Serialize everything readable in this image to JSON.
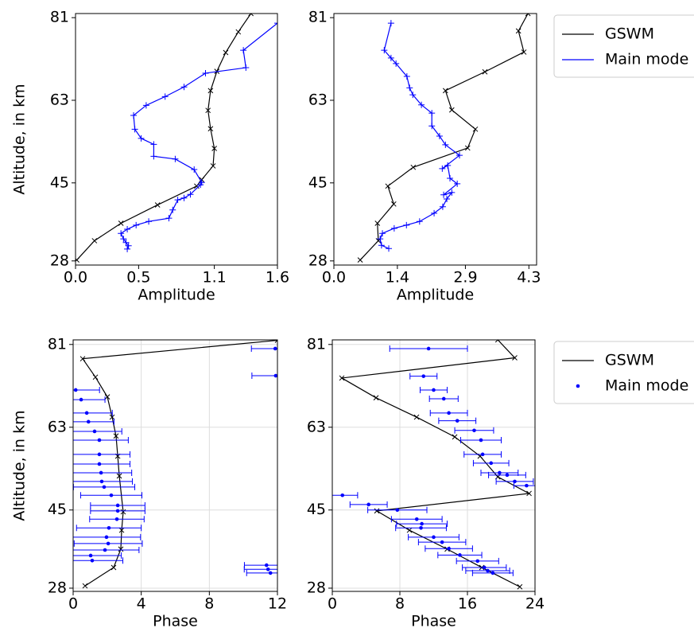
{
  "chart_data": [
    {
      "type": "line",
      "xlabel": "Amplitude",
      "ylabel": "Altitude, in km",
      "xlim": [
        0,
        1.6
      ],
      "ylim": [
        27.1,
        81.9
      ],
      "xticks": [
        {
          "value": 0,
          "label": "0.0"
        },
        0.5,
        1.1,
        1.6
      ],
      "yticks": [
        28,
        45,
        63,
        81
      ],
      "grid": false,
      "legend": "outside right",
      "series": [
        {
          "name": "GSWM",
          "color": "#000000",
          "marker": "x",
          "linestyle": "-",
          "x": [
            0.01,
            0.15,
            0.36,
            0.65,
            0.96,
            1.0,
            1.09,
            1.1,
            1.07,
            1.05,
            1.07,
            1.12,
            1.19,
            1.29,
            1.39
          ],
          "values": [
            28.2,
            32.4,
            36.2,
            40.2,
            44.3,
            45.7,
            48.7,
            52.5,
            56.8,
            60.8,
            65.1,
            69.3,
            73.4,
            77.9,
            81.9
          ]
        },
        {
          "name": "Main mode",
          "color": "#0000ff",
          "marker": "+",
          "linestyle": "-",
          "x": [
            0.41,
            0.42,
            0.4,
            0.38,
            0.36,
            0.41,
            0.48,
            0.58,
            0.74,
            0.77,
            0.81,
            0.86,
            0.91,
            0.99,
            1.0,
            0.94,
            0.79,
            0.62,
            0.62,
            0.52,
            0.47,
            0.46,
            0.56,
            0.71,
            0.86,
            1.03,
            1.35,
            1.33,
            1.6
          ],
          "values": [
            30.6,
            31.3,
            32.0,
            32.8,
            34.0,
            34.9,
            35.8,
            36.6,
            37.3,
            39.1,
            41.3,
            41.7,
            42.5,
            44.6,
            45.1,
            47.9,
            50.2,
            50.8,
            53.4,
            54.7,
            56.7,
            59.7,
            61.9,
            63.8,
            65.9,
            68.9,
            70.1,
            73.9,
            79.8
          ]
        }
      ]
    },
    {
      "type": "line",
      "xlabel": "Amplitude",
      "xlim": [
        0,
        4.47
      ],
      "ylim": [
        27.1,
        81.9
      ],
      "xticks": [
        {
          "value": 0,
          "label": "0.0"
        },
        1.4,
        2.9,
        4.3
      ],
      "yticks": [
        28,
        45,
        63,
        81
      ],
      "grid": false,
      "series": [
        {
          "name": "GSWM",
          "color": "#000000",
          "marker": "x",
          "linestyle": "-",
          "x": [
            0.58,
            0.98,
            0.96,
            1.32,
            1.19,
            1.75,
            2.95,
            3.12,
            2.6,
            2.46,
            3.33,
            4.19,
            4.07,
            4.28
          ],
          "values": [
            28.2,
            32.4,
            36.2,
            40.4,
            44.3,
            48.4,
            52.6,
            56.7,
            60.9,
            65.1,
            69.2,
            73.5,
            78.1,
            81.9
          ]
        },
        {
          "name": "Main mode",
          "color": "#0000ff",
          "marker": "+",
          "linestyle": "-",
          "x": [
            1.21,
            1.05,
            1.02,
            1.07,
            1.33,
            1.6,
            1.89,
            2.21,
            2.4,
            2.49,
            2.6,
            2.42,
            2.72,
            2.56,
            2.51,
            2.39,
            2.77,
            2.46,
            2.33,
            2.16,
            2.16,
            1.93,
            1.74,
            1.67,
            1.61,
            1.37,
            1.26,
            1.11,
            1.26
          ],
          "values": [
            30.7,
            31.4,
            32.8,
            34.0,
            35.1,
            35.8,
            36.6,
            38.4,
            39.8,
            41.5,
            42.9,
            42.4,
            44.8,
            46.0,
            48.8,
            48.1,
            51.0,
            53.3,
            55.2,
            57.4,
            60.2,
            62.0,
            64.2,
            65.7,
            68.2,
            71.0,
            72.2,
            73.9,
            79.8
          ]
        }
      ]
    },
    {
      "type": "line",
      "xlabel": "Phase",
      "ylabel": "Altitude, in km",
      "xlim": [
        0,
        12
      ],
      "ylim": [
        27.3,
        82.0
      ],
      "xticks": [
        0,
        4,
        8,
        12
      ],
      "yticks": [
        28,
        45,
        63,
        81
      ],
      "grid": true,
      "legend": "outside right",
      "series": [
        {
          "name": "GSWM",
          "color": "#000000",
          "marker": "x",
          "linestyle": "-",
          "x": [
            0.7,
            2.38,
            2.8,
            2.85,
            2.94,
            2.71,
            2.62,
            2.52,
            2.29,
            2.01,
            1.31,
            0.56,
            12.0
          ],
          "values": [
            28.5,
            32.5,
            36.5,
            40.6,
            44.6,
            52.4,
            56.7,
            61.1,
            65.2,
            69.6,
            73.9,
            77.9,
            81.9
          ]
        },
        {
          "name": "Main mode",
          "color": "#0000ff",
          "marker": "o",
          "linestyle": "none",
          "x": [
            11.87,
            11.9,
            0.15,
            0.47,
            0.8,
            0.9,
            1.26,
            1.54,
            1.54,
            1.54,
            1.64,
            1.68,
            1.82,
            2.24,
            2.62,
            2.62,
            2.57,
            2.1,
            1.96,
            2.06,
            1.87,
            1.03,
            1.12,
            11.36,
            11.45,
            11.59
          ],
          "values": [
            80.1,
            74.2,
            71.1,
            69.0,
            66.1,
            64.2,
            62.1,
            60.2,
            57.1,
            55.0,
            53.1,
            51.2,
            50.0,
            48.2,
            46.0,
            44.8,
            43.0,
            41.1,
            39.1,
            37.7,
            36.3,
            35.1,
            34.0,
            33.0,
            32.1,
            31.3
          ],
          "errors": [
            1.4,
            1.4,
            1.4,
            1.4,
            1.5,
            1.5,
            1.6,
            1.7,
            1.8,
            1.8,
            1.8,
            1.8,
            1.8,
            1.8,
            1.6,
            1.6,
            1.6,
            1.9,
            2.0,
            2.0,
            2.0,
            1.8,
            1.8,
            1.3,
            1.4,
            1.4
          ]
        }
      ]
    },
    {
      "type": "line",
      "xlabel": "Phase",
      "xlim": [
        0,
        24
      ],
      "ylim": [
        27.3,
        82.0
      ],
      "xticks": [
        0,
        8,
        16,
        24
      ],
      "yticks": [
        28,
        45,
        63,
        81
      ],
      "grid": true,
      "series": [
        {
          "name": "GSWM",
          "color": "#000000",
          "marker": "x",
          "linestyle": "-",
          "x": [
            19.6,
            21.6,
            1.13,
            5.18,
            9.98,
            14.5,
            17.5,
            19.6,
            23.3,
            5.27,
            9.13,
            13.6,
            17.7,
            22.2
          ],
          "values": [
            82.0,
            78.1,
            73.7,
            69.4,
            65.2,
            60.9,
            56.7,
            52.2,
            48.6,
            44.8,
            40.6,
            36.5,
            32.5,
            28.3
          ]
        },
        {
          "name": "Main mode",
          "color": "#0000ff",
          "marker": "o",
          "linestyle": "none",
          "x": [
            11.4,
            10.8,
            12.0,
            13.2,
            13.8,
            14.8,
            16.8,
            17.6,
            17.8,
            18.8,
            19.8,
            20.7,
            21.6,
            23.0,
            1.2,
            4.3,
            7.7,
            10.0,
            10.6,
            10.5,
            12.0,
            13.0,
            13.8,
            15.1,
            17.2,
            18.0,
            18.4,
            19.0
          ],
          "values": [
            80.1,
            74.1,
            71.1,
            69.2,
            66.1,
            64.4,
            62.3,
            60.2,
            57.1,
            55.2,
            53.1,
            52.6,
            51.2,
            50.3,
            48.2,
            46.2,
            45.0,
            43.0,
            42.0,
            41.1,
            39.1,
            38.0,
            36.6,
            35.2,
            33.9,
            32.5,
            31.8,
            31.3
          ],
          "errors": [
            4.6,
            1.6,
            1.6,
            1.7,
            2.2,
            2.2,
            2.3,
            2.4,
            2.2,
            2.1,
            2.2,
            2.2,
            2.2,
            1.5,
            1.8,
            2.2,
            3.5,
            3.0,
            3.0,
            3.0,
            3.0,
            2.8,
            2.8,
            2.6,
            2.5,
            2.6,
            2.6,
            2.4
          ]
        }
      ]
    }
  ]
}
